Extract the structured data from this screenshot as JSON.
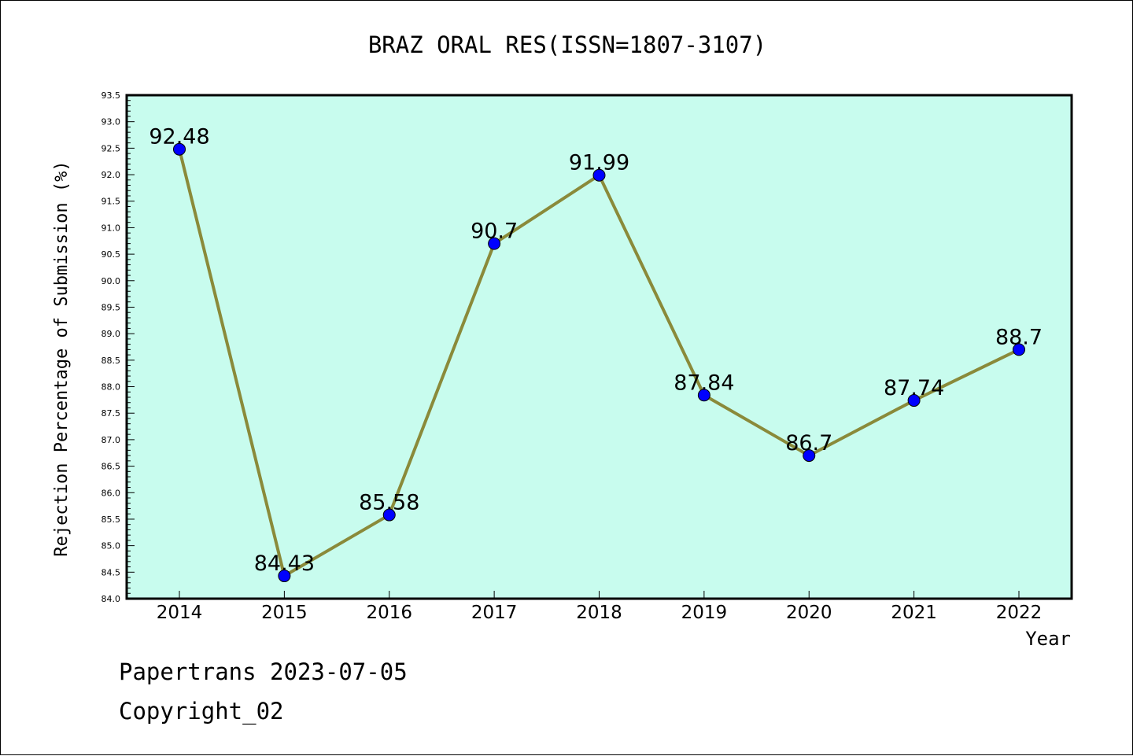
{
  "chart_data": {
    "type": "line",
    "title": "BRAZ ORAL RES(ISSN=1807-3107)",
    "xlabel": "Year",
    "ylabel": "Rejection Percentage of Submission (%)",
    "categories": [
      "2014",
      "2015",
      "2016",
      "2017",
      "2018",
      "2019",
      "2020",
      "2021",
      "2022"
    ],
    "values": [
      92.48,
      84.43,
      85.58,
      90.7,
      91.99,
      87.84,
      86.7,
      87.74,
      88.7
    ],
    "data_labels": [
      "92.48",
      "84.43",
      "85.58",
      "90.7",
      "91.99",
      "87.84",
      "86.7",
      "87.74",
      "88.7"
    ],
    "ylim": [
      84.0,
      93.5
    ],
    "y_major_step": 0.5,
    "y_ticks": [
      "84.0",
      "84.5",
      "85.0",
      "85.5",
      "86.0",
      "86.5",
      "87.0",
      "87.5",
      "88.0",
      "88.5",
      "89.0",
      "89.5",
      "90.0",
      "90.5",
      "91.0",
      "91.5",
      "92.0",
      "92.5",
      "93.0",
      "93.5"
    ],
    "grid": false,
    "colors": {
      "plot_background": "#c8fcee",
      "line": "#8a8a3a",
      "marker": "#0000ff"
    }
  },
  "footer": {
    "line1": "Papertrans 2023-07-05",
    "line2": "Copyright_02"
  }
}
